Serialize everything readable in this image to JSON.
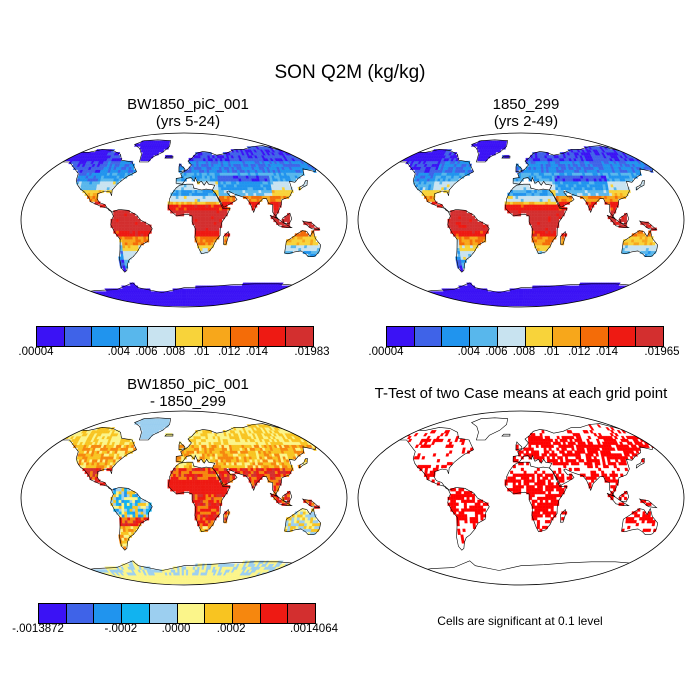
{
  "title": "SON Q2M (kg/kg)",
  "panels": [
    {
      "id": "p1",
      "title_line1": "BW1850_piC_001",
      "title_line2": "(yrs 5-24)"
    },
    {
      "id": "p2",
      "title_line1": "1850_299",
      "title_line2": "(yrs 2-49)"
    },
    {
      "id": "p3",
      "title_line1": "BW1850_piC_001",
      "title_line2": "- 1850_299"
    },
    {
      "id": "p4",
      "title_line1": "T-Test of two Case means at each grid point",
      "title_line2": ""
    }
  ],
  "colorbars": {
    "cb1": {
      "colors": [
        "#3b12f5",
        "#3f63e8",
        "#2094ee",
        "#58b7ec",
        "#c8e3f0",
        "#f8d33a",
        "#f7a71b",
        "#f46c08",
        "#ee1a13",
        "#d32f2f"
      ],
      "labels": [
        ".00004",
        ".004",
        ".006",
        ".008",
        ".01",
        ".012",
        ".014",
        ".01983"
      ]
    },
    "cb2": {
      "colors": [
        "#3b12f5",
        "#3f63e8",
        "#2094ee",
        "#58b7ec",
        "#c8e3f0",
        "#f8d33a",
        "#f7a71b",
        "#f46c08",
        "#ee1a13",
        "#d32f2f"
      ],
      "labels": [
        ".00004",
        ".004",
        ".006",
        ".008",
        ".01",
        ".012",
        ".014",
        ".01965"
      ]
    },
    "cb3": {
      "colors": [
        "#3b12f5",
        "#3f63e8",
        "#2094ee",
        "#11b3f0",
        "#9ccff0",
        "#fbf58a",
        "#f8c421",
        "#f6870e",
        "#ee1a13",
        "#d32f2f"
      ],
      "labels": [
        "-.0013872",
        "-.0002",
        ".0000",
        ".0002",
        ".0014064"
      ]
    }
  },
  "significance_note": "Cells are significant at 0.1 level",
  "colors": {
    "ocean": "#ffffff",
    "significant": "#ff0000",
    "coast": "#000000"
  }
}
